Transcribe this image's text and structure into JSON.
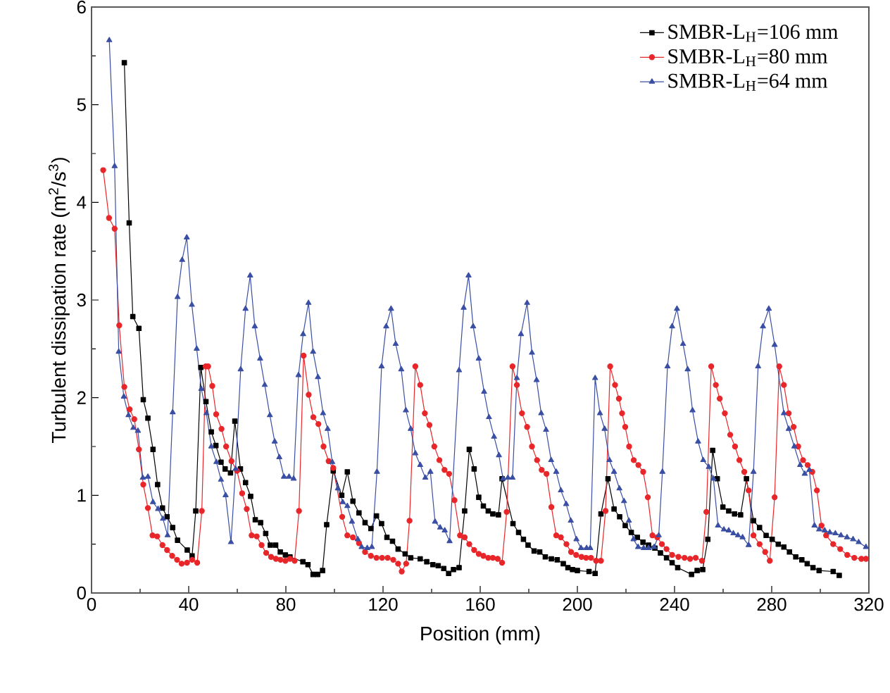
{
  "chart_data": {
    "type": "line",
    "xlabel": "Position (mm)",
    "ylabel": "Turbulent dissipation rate (m$^{2}$/s$^{3}$)",
    "xlim": [
      0,
      320
    ],
    "xticks": [
      0,
      40,
      80,
      120,
      160,
      200,
      240,
      280,
      320
    ],
    "ylim": [
      0,
      6
    ],
    "yticks": [
      0,
      1,
      2,
      3,
      4,
      5,
      6
    ],
    "grid": false,
    "legend": "top right",
    "line_style": "solid",
    "series": [
      {
        "name": "SMBR-L$_{H}$=106 mm",
        "color": "#000000",
        "marker": "square",
        "x": [
          13.5,
          15.5,
          17,
          19.5,
          21.3,
          23.2,
          25.3,
          27.2,
          29.2,
          31.1,
          33.4,
          35.4,
          39.4,
          41.4,
          42.9,
          45,
          47.1,
          49.3,
          51.2,
          53.3,
          55,
          57.2,
          59,
          61.3,
          63.4,
          65.5,
          67.4,
          69.6,
          71.7,
          73.6,
          75.8,
          77.7,
          79.8,
          81.7,
          87,
          89.1,
          91.2,
          93.1,
          95.1,
          96.8,
          99.5,
          103,
          105.3,
          107.6,
          110.1,
          112.6,
          115,
          117.3,
          119.4,
          121.6,
          123.9,
          126.2,
          129.1,
          131.4,
          135.3,
          138,
          140.5,
          142.7,
          145,
          147,
          149,
          151.3,
          153.6,
          155.5,
          157.5,
          159.4,
          161.3,
          163.3,
          165.2,
          167.5,
          169,
          173.5,
          175.8,
          177.8,
          179.7,
          182.2,
          184.5,
          186.8,
          189.3,
          191.7,
          194.2,
          196.1,
          198,
          200,
          204.8,
          207.3,
          209.7,
          212.6,
          215.1,
          217.4,
          219.7,
          222.2,
          224.7,
          227,
          229.3,
          231.9,
          234.2,
          236.7,
          239,
          241.3,
          247,
          249.3,
          251.6,
          253.7,
          255.7,
          257.6,
          259.9,
          262.3,
          264.7,
          267.2,
          269.6,
          272.5,
          275,
          277.7,
          280.2,
          282.7,
          285,
          287.3,
          289.9,
          292.4,
          294.6,
          297,
          299.5,
          305.3,
          307.8
        ],
        "values": [
          5.43,
          3.79,
          2.83,
          2.71,
          1.98,
          1.79,
          1.47,
          1.11,
          0.87,
          0.78,
          0.67,
          0.54,
          0.44,
          0.38,
          0.84,
          2.31,
          1.96,
          1.65,
          1.51,
          1.34,
          1.27,
          1.23,
          1.76,
          1.27,
          1.13,
          0.99,
          0.75,
          0.72,
          0.61,
          0.49,
          0.49,
          0.42,
          0.39,
          0.37,
          0.32,
          0.29,
          0.19,
          0.19,
          0.23,
          0.7,
          1.25,
          1.0,
          1.24,
          0.94,
          0.82,
          0.72,
          0.66,
          0.79,
          0.71,
          0.57,
          0.53,
          0.45,
          0.4,
          0.36,
          0.35,
          0.32,
          0.29,
          0.28,
          0.25,
          0.2,
          0.24,
          0.26,
          0.84,
          1.47,
          1.27,
          0.98,
          0.89,
          0.84,
          0.81,
          0.8,
          1.17,
          0.71,
          0.62,
          0.55,
          0.49,
          0.43,
          0.42,
          0.37,
          0.35,
          0.34,
          0.3,
          0.26,
          0.24,
          0.23,
          0.22,
          0.2,
          0.81,
          1.17,
          0.86,
          0.78,
          0.69,
          0.62,
          0.57,
          0.52,
          0.49,
          0.46,
          0.41,
          0.36,
          0.31,
          0.26,
          0.19,
          0.23,
          0.24,
          0.55,
          1.46,
          1.17,
          0.88,
          0.84,
          0.81,
          0.8,
          1.17,
          0.74,
          0.67,
          0.59,
          0.55,
          0.5,
          0.47,
          0.42,
          0.37,
          0.34,
          0.3,
          0.26,
          0.23,
          0.22,
          0.18
        ]
      },
      {
        "name": "SMBR-L$_{H}$=80 mm",
        "color": "#e8262a",
        "marker": "circle",
        "x": [
          4.8,
          7.2,
          9.5,
          11.4,
          13.5,
          15.7,
          17.6,
          19.5,
          21.3,
          23.2,
          25.1,
          27,
          29.2,
          31.1,
          33.2,
          35.2,
          37.1,
          39.3,
          41.4,
          43.5,
          45.4,
          47,
          48,
          49.7,
          51.3,
          53.5,
          55.4,
          57.6,
          59.9,
          62,
          63.9,
          65.9,
          68,
          70,
          71.9,
          73.9,
          75.9,
          77.8,
          79.8,
          81.7,
          83.6,
          85.4,
          87.3,
          89.4,
          91.3,
          93.4,
          95.5,
          97.6,
          99.5,
          103.2,
          105.3,
          107.6,
          110.1,
          112.6,
          115,
          117.3,
          119.6,
          121.9,
          124.2,
          126.2,
          127.7,
          129.5,
          130.9,
          133.3,
          135.3,
          137.2,
          139.1,
          141.1,
          143.2,
          145.3,
          147.2,
          149.4,
          151.7,
          153.6,
          155.5,
          157.5,
          159.4,
          161.3,
          163.3,
          165.2,
          167.2,
          169,
          170.9,
          173.3,
          175.1,
          177.2,
          179.3,
          181.3,
          183.4,
          185.3,
          187.3,
          189.3,
          191.3,
          193.2,
          195.5,
          197.4,
          199.5,
          201.7,
          203.6,
          205.6,
          207.7,
          209.7,
          211.6,
          213.5,
          215.5,
          217.1,
          218.4,
          219.7,
          221.3,
          223.2,
          225.1,
          227.1,
          229,
          230.9,
          232.9,
          234.8,
          236.7,
          239,
          241.6,
          244.1,
          246.4,
          248.7,
          251.3,
          253.1,
          255.1,
          257,
          258.6,
          260.7,
          262.9,
          264.9,
          266.7,
          268.7,
          270.5,
          272.5,
          275,
          277.3,
          279.2,
          281.2,
          283.1,
          285,
          287,
          289,
          290.9,
          292.9,
          294.8,
          296.7,
          298.6,
          300.5,
          302.4,
          305.3,
          308.2,
          311.1,
          314,
          316.9,
          318.8
        ],
        "values": [
          4.33,
          3.84,
          3.73,
          2.74,
          2.11,
          1.88,
          1.78,
          1.47,
          1.11,
          0.87,
          0.59,
          0.58,
          0.49,
          0.44,
          0.38,
          0.34,
          0.3,
          0.31,
          0.34,
          0.31,
          0.84,
          2.32,
          2.32,
          2.12,
          1.83,
          1.68,
          1.5,
          1.35,
          1.25,
          1.02,
          0.86,
          0.59,
          0.58,
          0.49,
          0.41,
          0.37,
          0.35,
          0.34,
          0.33,
          0.35,
          0.33,
          0.84,
          2.43,
          2.03,
          1.8,
          1.73,
          1.5,
          1.35,
          1.28,
          0.78,
          0.59,
          0.57,
          0.51,
          0.42,
          0.38,
          0.36,
          0.36,
          0.36,
          0.34,
          0.3,
          0.22,
          0.3,
          0.74,
          2.32,
          2.13,
          1.84,
          1.72,
          1.5,
          1.36,
          1.26,
          1.22,
          0.95,
          0.59,
          0.57,
          0.5,
          0.44,
          0.4,
          0.38,
          0.36,
          0.36,
          0.35,
          0.31,
          0.83,
          2.32,
          2.13,
          1.84,
          1.7,
          1.5,
          1.36,
          1.26,
          1.22,
          0.88,
          0.59,
          0.57,
          0.5,
          0.42,
          0.39,
          0.37,
          0.36,
          0.36,
          0.33,
          0.33,
          0.84,
          2.32,
          2.13,
          1.99,
          1.84,
          1.7,
          1.5,
          1.36,
          1.31,
          1.24,
          0.98,
          0.59,
          0.57,
          0.5,
          0.45,
          0.39,
          0.37,
          0.36,
          0.35,
          0.36,
          0.33,
          0.83,
          2.32,
          2.13,
          1.99,
          1.84,
          1.62,
          1.5,
          1.36,
          1.24,
          1.05,
          0.59,
          0.5,
          0.42,
          0.33,
          0.98,
          2.32,
          2.13,
          1.84,
          1.7,
          1.5,
          1.36,
          1.31,
          1.24,
          1.05,
          0.69,
          0.59,
          0.5,
          0.45,
          0.39,
          0.36,
          0.35,
          0.35
        ]
      },
      {
        "name": "SMBR-L$_{H}$=64 mm",
        "color": "#3a4fa3",
        "marker": "triangle",
        "x": [
          7.3,
          9.5,
          11.2,
          13.3,
          15.2,
          17.2,
          19.1,
          21.1,
          23.2,
          25.3,
          27.4,
          29.4,
          31.3,
          33.4,
          35.4,
          37.3,
          39.2,
          41.3,
          43.3,
          45.2,
          47.3,
          49.3,
          51.4,
          53.3,
          55.2,
          57.4,
          59.3,
          61.4,
          63.4,
          65.3,
          67.2,
          69.4,
          71.3,
          73.4,
          75.4,
          77.3,
          79.2,
          81.3,
          83.2,
          85.2,
          87.1,
          89.3,
          91.2,
          93.2,
          95.3,
          97.2,
          99.1,
          101.4,
          103.4,
          105.3,
          107.2,
          109.6,
          111.2,
          113.5,
          115.4,
          117.5,
          119.4,
          121.3,
          123.3,
          125.2,
          127.5,
          129.4,
          131.4,
          133.3,
          135.3,
          137.4,
          139.5,
          141.4,
          143.5,
          145.4,
          147.4,
          151.3,
          153.2,
          155.2,
          157.1,
          159.4,
          161.6,
          163.6,
          165.7,
          167.7,
          169.4,
          171.4,
          173.3,
          175.1,
          176.8,
          179.3,
          181.3,
          183.2,
          185.1,
          187.1,
          189.2,
          191.3,
          193.2,
          195.4,
          197.3,
          199.6,
          201.5,
          203.8,
          205.3,
          207.3,
          209.3,
          211.2,
          213.2,
          215.1,
          217.3,
          219.2,
          221.2,
          223.1,
          225,
          227.3,
          229.3,
          231.6,
          233.5,
          235,
          237.1,
          239,
          241,
          243.5,
          245.4,
          247.4,
          249.7,
          251.8,
          254.1,
          256,
          257.9,
          260.3,
          262.3,
          264.2,
          266.1,
          268,
          270.5,
          272.5,
          274.4,
          276.4,
          278.8,
          281.2,
          285,
          287,
          289.3,
          291.7,
          293.6,
          295.5,
          297.6,
          299.5,
          301.8,
          303.9,
          306.2,
          308.5,
          311,
          313.5,
          315.8,
          318.8
        ],
        "values": [
          5.66,
          4.37,
          2.47,
          2.01,
          1.82,
          1.69,
          1.66,
          1.18,
          1.19,
          0.93,
          0.86,
          0.76,
          0.59,
          1.85,
          3.03,
          3.41,
          3.64,
          2.95,
          2.5,
          2.09,
          1.84,
          1.5,
          1.34,
          1.16,
          1.0,
          0.52,
          1.27,
          2.29,
          2.91,
          3.25,
          2.73,
          2.4,
          2.13,
          1.82,
          1.55,
          1.39,
          1.19,
          1.19,
          1.17,
          2.23,
          2.65,
          2.97,
          2.47,
          2.21,
          1.84,
          1.68,
          1.34,
          1.07,
          0.93,
          0.89,
          0.73,
          0.55,
          0.47,
          0.46,
          0.47,
          1.24,
          2.32,
          2.73,
          2.91,
          2.55,
          2.29,
          1.87,
          1.68,
          1.43,
          1.31,
          1.18,
          1.24,
          0.73,
          0.67,
          0.64,
          0.53,
          2.28,
          2.92,
          3.25,
          2.73,
          2.4,
          2.06,
          1.8,
          1.6,
          1.41,
          1.17,
          1.18,
          1.18,
          2.2,
          2.65,
          2.97,
          2.46,
          2.18,
          1.84,
          1.67,
          1.36,
          1.24,
          1.05,
          0.91,
          0.74,
          0.55,
          0.46,
          0.46,
          0.46,
          2.2,
          1.84,
          1.68,
          1.36,
          1.24,
          1.07,
          0.94,
          0.74,
          0.55,
          0.47,
          0.46,
          0.46,
          0.47,
          0.59,
          1.24,
          2.32,
          2.73,
          2.91,
          2.55,
          2.29,
          1.87,
          1.55,
          1.36,
          1.29,
          1.17,
          0.69,
          0.65,
          0.64,
          0.61,
          0.59,
          0.57,
          0.49,
          1.24,
          2.32,
          2.73,
          2.91,
          2.54,
          1.84,
          1.68,
          1.5,
          1.31,
          1.22,
          1.26,
          0.69,
          0.65,
          0.64,
          0.62,
          0.61,
          0.59,
          0.57,
          0.55,
          0.52,
          0.47
        ]
      }
    ]
  }
}
